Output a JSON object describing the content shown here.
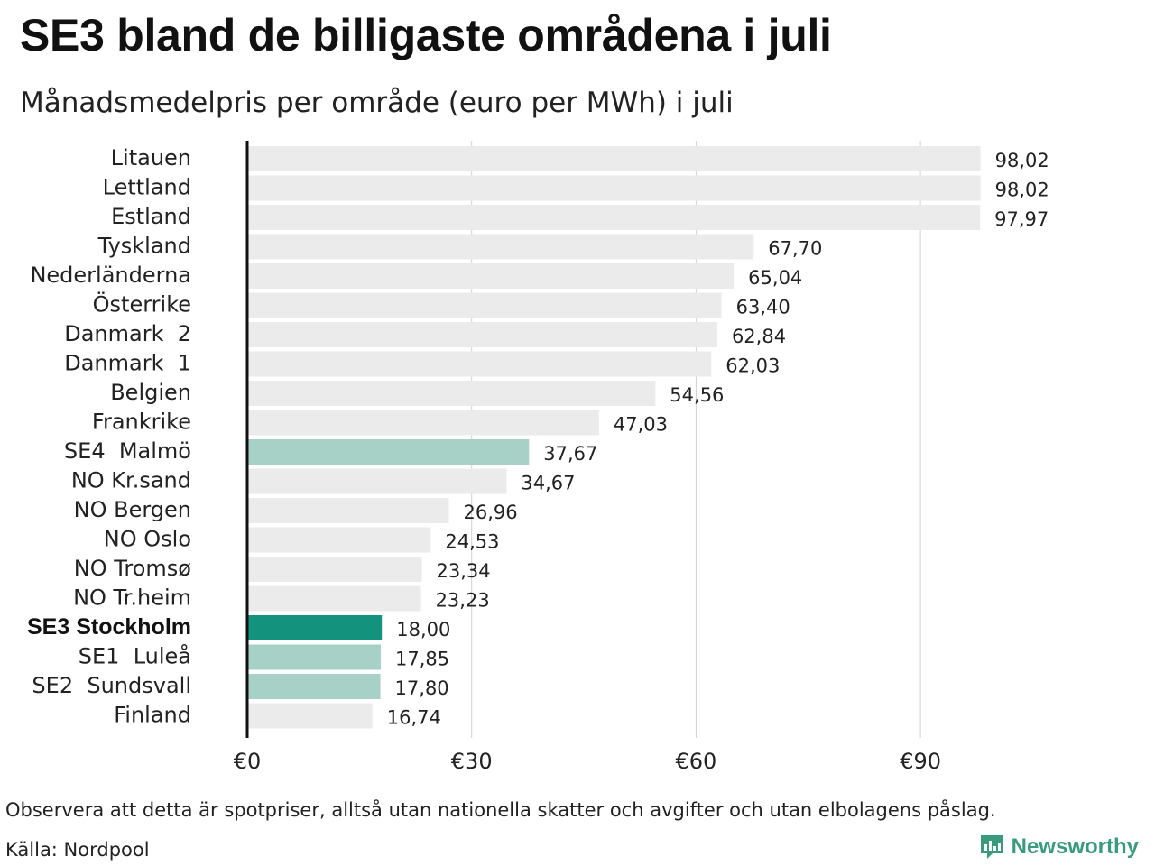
{
  "title": "SE3 bland de billigaste områdena i juli",
  "subtitle": "Månadsmedelpris per område (euro per MWh) i juli",
  "note": "Observera att detta är spotpriser, alltså utan nationella skatter och avgifter och utan elbolagens påslag.",
  "source": "Källa: Nordpool",
  "brand": {
    "name": "Newsworthy",
    "icon": "newsworthy-logo-icon"
  },
  "colors": {
    "default": "#ebebeb",
    "se_light": "#a7d0c6",
    "highlight": "#13927e",
    "axis": "#111111",
    "grid": "#d0d0d0"
  },
  "chart_data": {
    "type": "bar",
    "orientation": "horizontal",
    "title": "SE3 bland de billigaste områdena i juli",
    "subtitle": "Månadsmedelpris per område (euro per MWh) i juli",
    "categories": [
      "Litauen",
      "Lettland",
      "Estland",
      "Tyskland",
      "Nederländerna",
      "Österrike",
      "Danmark  2",
      "Danmark  1",
      "Belgien",
      "Frankrike",
      "SE4  Malmö",
      "NO Kr.sand",
      "NO Bergen",
      "NO Oslo",
      "NO Tromsø",
      "NO Tr.heim",
      "SE3 Stockholm",
      "SE1  Luleå",
      "SE2  Sundsvall",
      "Finland"
    ],
    "values": [
      98.02,
      98.02,
      97.97,
      67.7,
      65.04,
      63.4,
      62.84,
      62.03,
      54.56,
      47.03,
      37.67,
      34.67,
      26.96,
      24.53,
      23.34,
      23.23,
      18.0,
      17.85,
      17.8,
      16.74
    ],
    "value_labels": [
      "98,02",
      "98,02",
      "97,97",
      "67,70",
      "65,04",
      "63,40",
      "62,84",
      "62,03",
      "54,56",
      "47,03",
      "37,67",
      "34,67",
      "26,96",
      "24,53",
      "23,34",
      "23,23",
      "18,00",
      "17,85",
      "17,80",
      "16,74"
    ],
    "bar_colors": [
      "default",
      "default",
      "default",
      "default",
      "default",
      "default",
      "default",
      "default",
      "default",
      "default",
      "se_light",
      "default",
      "default",
      "default",
      "default",
      "default",
      "highlight",
      "se_light",
      "se_light",
      "default"
    ],
    "bold_category": "SE3 Stockholm",
    "xticks": [
      0,
      30,
      60,
      90
    ],
    "xtick_labels": [
      "€0",
      "€30",
      "€60",
      "€90"
    ],
    "xlim": [
      0,
      105
    ],
    "grid": "vertical",
    "legend": "none"
  }
}
